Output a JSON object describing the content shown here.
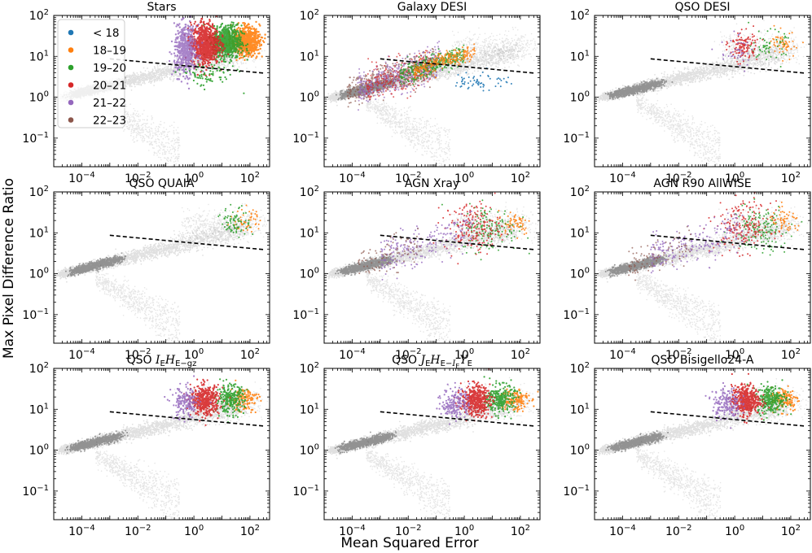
{
  "chart_data": {
    "type": "scatter",
    "xscale": "log",
    "yscale": "log",
    "xlabel": "Mean Squared Error",
    "ylabel": "Max Pixel Difference Ratio",
    "xlim": [
      1e-05,
      500
    ],
    "ylim": [
      0.02,
      100
    ],
    "x_ticks": [
      {
        "base": "10",
        "exp": "−4",
        "value": 0.0001
      },
      {
        "base": "10",
        "exp": "−2",
        "value": 0.01
      },
      {
        "base": "10",
        "exp": "0",
        "value": 1
      },
      {
        "base": "10",
        "exp": "2",
        "value": 100
      }
    ],
    "y_ticks": [
      {
        "base": "10",
        "exp": "−1",
        "value": 0.1
      },
      {
        "base": "10",
        "exp": "0",
        "value": 1
      },
      {
        "base": "10",
        "exp": "1",
        "value": 10
      },
      {
        "base": "10",
        "exp": "2",
        "value": 100
      }
    ],
    "threshold_line": {
      "style": "dashed",
      "color": "#000000",
      "x": [
        0.001,
        300
      ],
      "y": [
        8.7,
        3.9
      ]
    },
    "legend": {
      "location": "upper-left of first panel",
      "entries": [
        {
          "label": "< 18",
          "prefix": "<",
          "rest": "18",
          "color": "#1f77b4"
        },
        {
          "label": "18–19",
          "color": "#ff7f0e"
        },
        {
          "label": "19–20",
          "color": "#2ca02c"
        },
        {
          "label": "20–21",
          "color": "#d62728"
        },
        {
          "label": "21–22",
          "color": "#9467bd"
        },
        {
          "label": "22–23",
          "color": "#8c564b"
        }
      ]
    },
    "background_population": {
      "color": "#000000",
      "description_x_range": [
        3e-05,
        100
      ],
      "description_y_range": [
        0.04,
        40
      ]
    },
    "panels": [
      {
        "title": "Stars",
        "title_parts": [
          {
            "t": "Stars"
          }
        ],
        "highlight": "stars"
      },
      {
        "title": "Galaxy DESI",
        "title_parts": [
          {
            "t": "Galaxy DESI"
          }
        ],
        "highlight": "galaxy"
      },
      {
        "title": "QSO DESI",
        "title_parts": [
          {
            "t": "QSO DESI"
          }
        ],
        "highlight": "qso_light"
      },
      {
        "title": "QSO QUAIA",
        "title_parts": [
          {
            "t": "QSO QUAIA"
          }
        ],
        "highlight": "qso_bright"
      },
      {
        "title": "AGN Xray",
        "title_parts": [
          {
            "t": "AGN Xray"
          }
        ],
        "highlight": "agn"
      },
      {
        "title": "AGN R90 AllWISE",
        "title_parts": [
          {
            "t": "AGN R90 AllWISE"
          }
        ],
        "highlight": "agn"
      },
      {
        "title": "QSO I_E H_E-gz",
        "title_parts": [
          {
            "t": "QSO "
          },
          {
            "t": "I",
            "i": true
          },
          {
            "t": "E",
            "sub": true
          },
          {
            "t": "H",
            "i": true
          },
          {
            "t": "E",
            "sub": true
          },
          {
            "t": "−gz",
            "sub": true
          }
        ],
        "highlight": "qso_dense"
      },
      {
        "title": "QSO J_E H_E-I_E Y_E",
        "title_parts": [
          {
            "t": "QSO "
          },
          {
            "t": "J",
            "i": true
          },
          {
            "t": "E",
            "sub": true
          },
          {
            "t": "H",
            "i": true
          },
          {
            "t": "E",
            "sub": true
          },
          {
            "t": "−",
            "sub": true
          },
          {
            "t": "I",
            "i": true,
            "sub": true
          },
          {
            "t": "E",
            "sub2": true
          },
          {
            "t": "Y",
            "i": true
          },
          {
            "t": "E",
            "sub": true
          }
        ],
        "highlight": "qso_dense"
      },
      {
        "title": "QSO Bisigello24-A",
        "title_parts": [
          {
            "t": "QSO Bisigello24-A"
          }
        ],
        "highlight": "qso_dense"
      }
    ]
  }
}
